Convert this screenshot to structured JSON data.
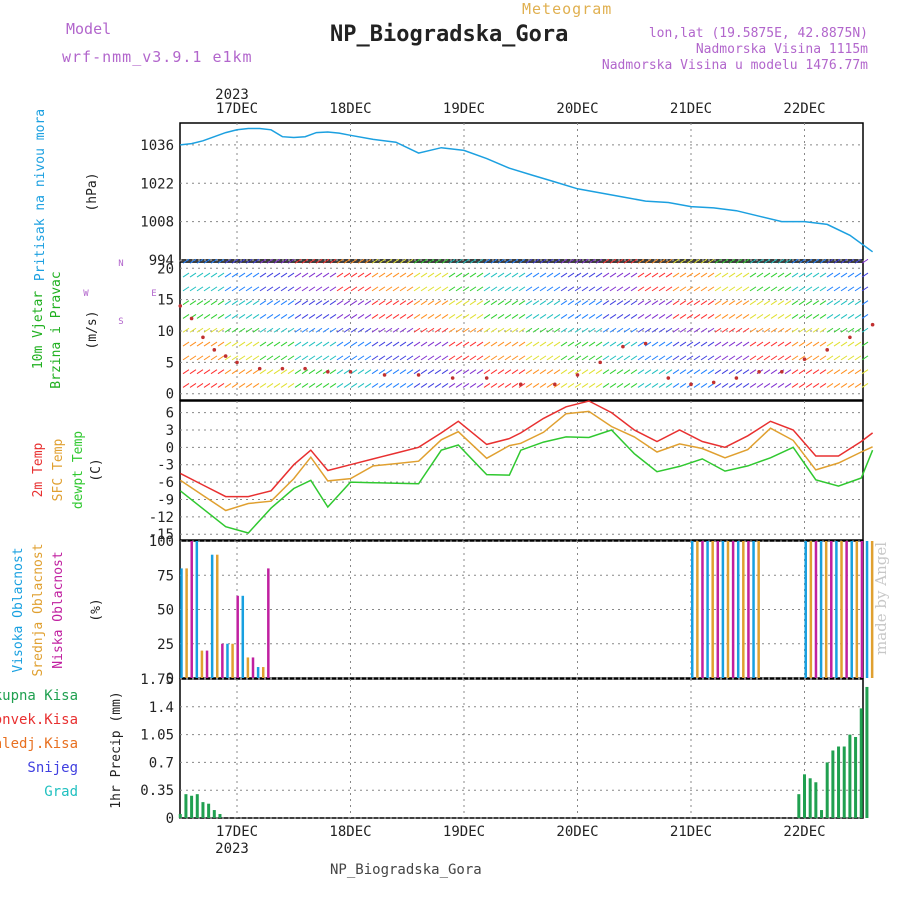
{
  "header": {
    "model_label": "Model",
    "model_value": "wrf-nmm_v3.9.1  e1km",
    "title": "NP_Biogradska_Gora",
    "subtitle": "Meteogram",
    "coords": "lon,lat (19.5875E, 42.8875N)",
    "elevation": "Nadmorska Visina 1115m",
    "model_elevation": "Nadmorska Visina u modelu 1476.77m",
    "credit": "made by Angel",
    "footer_title": "NP_Biogradska_Gora",
    "year_top": "2023",
    "year_bottom": "2023"
  },
  "colors": {
    "pressure": "#1ca0e0",
    "temp2m": "#e83030",
    "sfc": "#e0a030",
    "dewpt": "#30c830",
    "high_cloud": "#18a0e0",
    "mid_cloud": "#e0a030",
    "low_cloud": "#c020a0",
    "precip": "#20a050",
    "snow": "#4040e0",
    "hail": "#20c0c0",
    "conv": "#e83030",
    "frz": "#e87020"
  },
  "chart_data": [
    {
      "type": "line",
      "panel": "pressure",
      "x_days": [
        "17DEC",
        "18DEC",
        "19DEC",
        "20DEC",
        "21DEC",
        "22DEC"
      ],
      "ylabel": "Pritisak na nivou mora",
      "unit": "(hPa)",
      "yticks": [
        994,
        1008,
        1022,
        1036
      ],
      "ylim": [
        994,
        1044
      ],
      "grid": true,
      "series": [
        {
          "key": "pressure",
          "t": [
            -0.5,
            -0.4,
            -0.3,
            -0.2,
            -0.1,
            0.0,
            0.1,
            0.2,
            0.3,
            0.4,
            0.5,
            0.6,
            0.7,
            0.8,
            0.9,
            1.0,
            1.2,
            1.4,
            1.6,
            1.8,
            2.0,
            2.2,
            2.4,
            2.6,
            2.8,
            3.0,
            3.2,
            3.4,
            3.6,
            3.8,
            4.0,
            4.2,
            4.4,
            4.6,
            4.8,
            5.0,
            5.2,
            5.4,
            5.6
          ],
          "values": [
            1036,
            1036.5,
            1037.5,
            1039,
            1040.5,
            1041.5,
            1042,
            1042,
            1041.5,
            1039,
            1038.7,
            1039,
            1040.5,
            1040.7,
            1040.3,
            1039.5,
            1038,
            1037,
            1033,
            1035,
            1034,
            1031,
            1027.5,
            1025,
            1022.5,
            1020,
            1018.5,
            1017,
            1015.5,
            1015,
            1013.5,
            1013,
            1012,
            1010,
            1008,
            1008,
            1007,
            1003,
            997
          ]
        }
      ]
    },
    {
      "type": "scatter",
      "panel": "wind",
      "ylabel": "10m Vjetar Brzina i Pravac",
      "unit": "(m/s)",
      "compass": [
        "W",
        "E",
        "N",
        "S"
      ],
      "yticks": [
        0,
        5,
        10,
        15,
        20
      ],
      "ylim": [
        -1,
        21
      ],
      "grid": true,
      "series": [
        {
          "name": "speed",
          "t": [
            -0.5,
            -0.4,
            -0.3,
            -0.2,
            -0.1,
            0.0,
            0.2,
            0.4,
            0.6,
            0.8,
            1.0,
            1.3,
            1.6,
            1.9,
            2.2,
            2.5,
            2.8,
            3.0,
            3.2,
            3.4,
            3.6,
            3.8,
            4.0,
            4.2,
            4.4,
            4.6,
            4.8,
            5.0,
            5.2,
            5.4,
            5.6
          ],
          "values": [
            14,
            12,
            9,
            7,
            6,
            5,
            4,
            4,
            4,
            3.5,
            3.5,
            3,
            3,
            2.5,
            2.5,
            1.5,
            1.5,
            3,
            5,
            7.5,
            8,
            2.5,
            1.5,
            1.8,
            2.5,
            3.5,
            3.5,
            5.5,
            7,
            9,
            11
          ]
        }
      ]
    },
    {
      "type": "line",
      "panel": "temperature",
      "ylabel": "2m Temp / SFC Temp / dewpt Temp",
      "unit": "(C)",
      "yticks": [
        -15,
        -12,
        -9,
        -6,
        -3,
        0,
        3,
        6
      ],
      "ylim": [
        -16,
        8
      ],
      "grid": true,
      "series": [
        {
          "name": "2m Temp",
          "key": "temp2m",
          "t": [
            -0.5,
            -0.3,
            -0.1,
            0.1,
            0.3,
            0.5,
            0.65,
            0.8,
            1.0,
            1.2,
            1.4,
            1.6,
            1.8,
            1.95,
            2.2,
            2.4,
            2.5,
            2.7,
            2.9,
            3.1,
            3.3,
            3.5,
            3.7,
            3.9,
            4.1,
            4.3,
            4.5,
            4.7,
            4.9,
            5.1,
            5.3,
            5.5,
            5.6
          ],
          "values": [
            -4.5,
            -6.5,
            -8.5,
            -8.5,
            -7.5,
            -3,
            -0.5,
            -4,
            -3,
            -2,
            -1,
            0,
            2.5,
            4.5,
            0.5,
            1.5,
            2.5,
            5,
            7,
            8,
            6,
            3,
            1,
            3,
            1,
            0,
            2,
            4.5,
            3,
            -1.5,
            -1.5,
            1,
            2.5
          ]
        }
      ]
    },
    {
      "type": "bar",
      "panel": "cloud",
      "ylabel": "Visoka Oblacnost / Srednja Oblacnost / Niska Oblacnost",
      "unit": "(%)",
      "yticks": [
        0,
        25,
        50,
        75,
        100
      ],
      "ylim": [
        0,
        100
      ],
      "grid": true,
      "series": [
        {
          "name": "Visoka Oblacnost",
          "key": "high_cloud"
        },
        {
          "name": "Srednja Oblacnost",
          "key": "mid_cloud"
        },
        {
          "name": "Niska Oblacnost",
          "key": "low_cloud"
        }
      ]
    },
    {
      "type": "bar",
      "panel": "precip",
      "ylabel": "1hr Precip (mm)",
      "legend": [
        "Ukupna Kisa",
        "Konvek.Kisa",
        "Zaledj.Kisa",
        "Snijeg",
        "Grad"
      ],
      "yticks": [
        0,
        0.35,
        0.7,
        1.05,
        1.4,
        1.75
      ],
      "ylim": [
        0,
        1.75
      ],
      "grid": true,
      "series": [
        {
          "name": "Ukupna Kisa",
          "key": "precip",
          "t": [
            -0.5,
            -0.45,
            -0.4,
            -0.35,
            -0.3,
            -0.25,
            -0.2,
            -0.15,
            4.95,
            5.0,
            5.05,
            5.1,
            5.15,
            5.2,
            5.25,
            5.3,
            5.35,
            5.4,
            5.45,
            5.5,
            5.55
          ],
          "values": [
            0.05,
            0.3,
            0.28,
            0.3,
            0.2,
            0.18,
            0.1,
            0.05,
            0.3,
            0.55,
            0.5,
            0.45,
            0.1,
            0.7,
            0.85,
            0.9,
            0.9,
            1.05,
            1.02,
            1.38,
            1.65
          ]
        }
      ]
    }
  ]
}
